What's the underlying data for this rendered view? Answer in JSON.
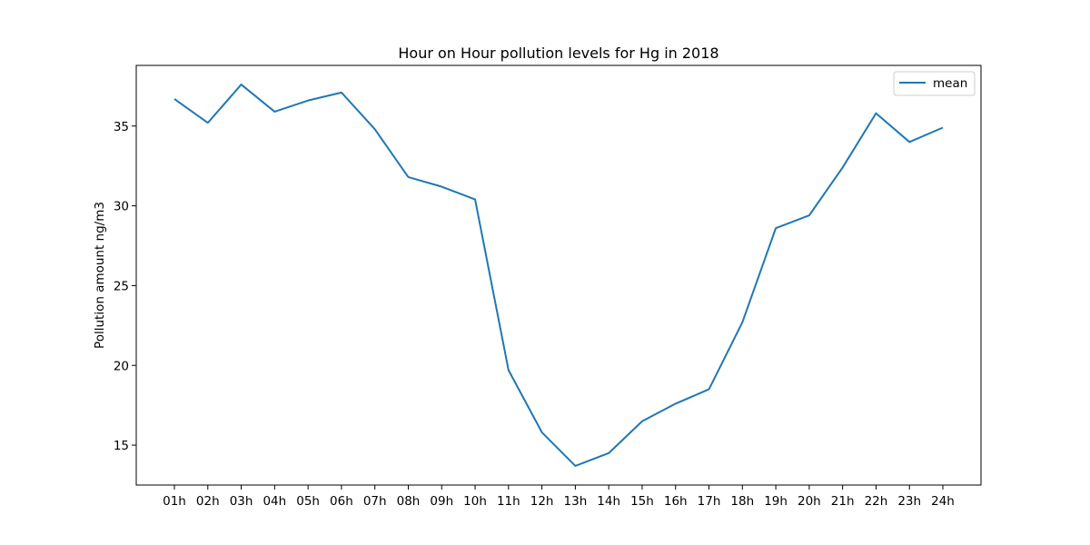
{
  "chart_data": {
    "type": "line",
    "title": "Hour on Hour pollution levels for Hg in 2018",
    "xlabel": "",
    "ylabel": "Pollution amount ng/m3",
    "categories": [
      "01h",
      "02h",
      "03h",
      "04h",
      "05h",
      "06h",
      "07h",
      "08h",
      "09h",
      "10h",
      "11h",
      "12h",
      "13h",
      "14h",
      "15h",
      "16h",
      "17h",
      "18h",
      "19h",
      "20h",
      "21h",
      "22h",
      "23h",
      "24h"
    ],
    "series": [
      {
        "name": "mean",
        "color": "#1f77b4",
        "values": [
          36.7,
          35.2,
          37.6,
          35.9,
          36.6,
          37.1,
          34.8,
          31.8,
          31.2,
          30.4,
          19.7,
          15.8,
          13.7,
          14.5,
          16.5,
          17.6,
          18.5,
          22.7,
          28.6,
          29.4,
          32.4,
          35.8,
          34.0,
          34.9
        ]
      }
    ],
    "yticks": [
      15,
      20,
      25,
      30,
      35
    ],
    "ylim": [
      12.5,
      38.8
    ],
    "grid": false,
    "legend_position": "upper right"
  }
}
